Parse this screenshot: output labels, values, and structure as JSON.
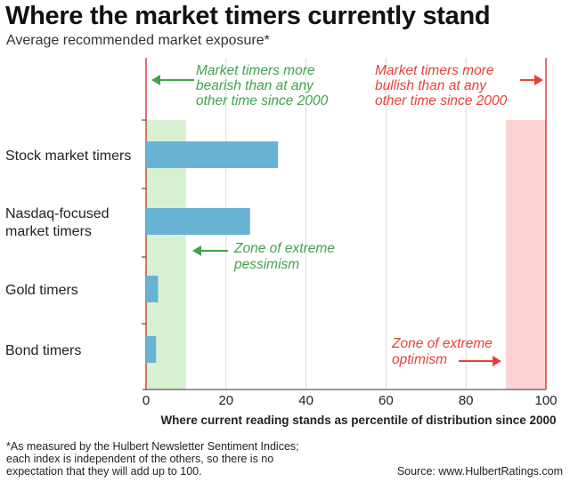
{
  "title": "Where the market timers currently stand",
  "subtitle": "Average recommended market exposure*",
  "footnote_lines": [
    "*As measured by the Hulbert Newsletter Sentiment Indices;",
    "each index is independent of the others, so there is no",
    "expectation that they will add up to 100."
  ],
  "source": "Source: www.HulbertRatings.com",
  "colors": {
    "bar": "#68b3d3",
    "pessimism_zone": "#d7f0d2",
    "optimism_zone": "#fcd2d2",
    "bearish_text": "#3fa34d",
    "bullish_text": "#e8413a",
    "axis_line": "#cc2a2a",
    "grid": "#d8d8d8"
  },
  "chart_data": {
    "type": "bar",
    "orientation": "horizontal",
    "categories": [
      [
        "Stock market timers"
      ],
      [
        "Nasdaq-focused",
        "market timers"
      ],
      [
        "Gold timers"
      ],
      [
        "Bond timers"
      ]
    ],
    "values": [
      33,
      26,
      3,
      2.5
    ],
    "xlim": [
      0,
      100
    ],
    "xticks": [
      0,
      20,
      40,
      60,
      80,
      100
    ],
    "xlabel": "Where current reading stands as percentile of distribution since 2000",
    "grid": "vertical",
    "zones": [
      {
        "name": "Zone of extreme pessimism",
        "from": 0,
        "to": 10
      },
      {
        "name": "Zone of extreme optimism",
        "from": 90,
        "to": 100
      }
    ],
    "annotations": {
      "bearish": [
        "Market timers more",
        "bearish than at any",
        "other time since 2000"
      ],
      "bullish": [
        "Market timers more",
        "bullish than at any",
        "other time since 2000"
      ],
      "pessimism": [
        "Zone of extreme",
        "pessimism"
      ],
      "optimism": [
        "Zone of extreme",
        "optimism"
      ]
    }
  }
}
